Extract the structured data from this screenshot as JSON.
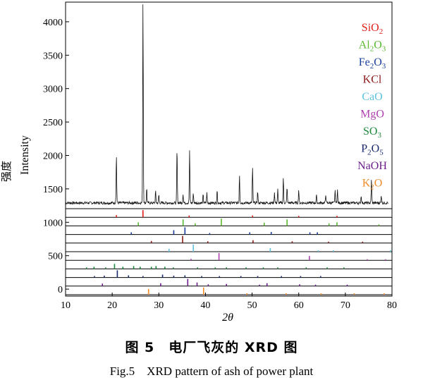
{
  "caption": {
    "chinese": "图 5　电厂飞灰的 XRD 图",
    "english": "Fig.5　XRD pattern of ash of power plant"
  },
  "chart_data": {
    "type": "line",
    "xlabel": "2θ",
    "ylabel_cn": "强度",
    "ylabel_en": "Intensity",
    "xlim": [
      10,
      80
    ],
    "ylim": [
      0,
      4300
    ],
    "x_ticks": [
      10,
      20,
      30,
      40,
      50,
      60,
      70,
      80
    ],
    "y_ticks": [
      0,
      500,
      1000,
      1500,
      2000,
      2500,
      3000,
      3500,
      4000
    ],
    "series": [
      {
        "name": "",
        "baseline": 1280,
        "peaks": [
          {
            "x": 20.9,
            "y": 2000
          },
          {
            "x": 26.6,
            "y": 4300
          },
          {
            "x": 27.4,
            "y": 1500
          },
          {
            "x": 29.3,
            "y": 1450
          },
          {
            "x": 30.0,
            "y": 1400
          },
          {
            "x": 33.9,
            "y": 2100
          },
          {
            "x": 35.2,
            "y": 1420
          },
          {
            "x": 36.6,
            "y": 2050
          },
          {
            "x": 37.4,
            "y": 1420
          },
          {
            "x": 39.5,
            "y": 1400
          },
          {
            "x": 40.3,
            "y": 1430
          },
          {
            "x": 42.5,
            "y": 1470
          },
          {
            "x": 47.3,
            "y": 1700
          },
          {
            "x": 50.1,
            "y": 1800
          },
          {
            "x": 51.2,
            "y": 1450
          },
          {
            "x": 54.8,
            "y": 1440
          },
          {
            "x": 55.5,
            "y": 1480
          },
          {
            "x": 56.7,
            "y": 1660
          },
          {
            "x": 57.5,
            "y": 1520
          },
          {
            "x": 60.0,
            "y": 1480
          },
          {
            "x": 63.8,
            "y": 1400
          },
          {
            "x": 65.8,
            "y": 1410
          },
          {
            "x": 67.8,
            "y": 1460
          },
          {
            "x": 68.3,
            "y": 1480
          },
          {
            "x": 73.4,
            "y": 1390
          },
          {
            "x": 75.6,
            "y": 1640
          },
          {
            "x": 77.7,
            "y": 1400
          }
        ]
      }
    ],
    "reference_patterns": [
      {
        "name": "SiO2",
        "color": "#e0201c",
        "lines": [
          [
            20.9,
            0.3
          ],
          [
            26.6,
            1.0
          ],
          [
            36.5,
            0.25
          ],
          [
            50.1,
            0.25
          ],
          [
            60.0,
            0.2
          ],
          [
            68.2,
            0.2
          ]
        ]
      },
      {
        "name": "Al2O3",
        "color": "#5ab830",
        "lines": [
          [
            25.6,
            0.5
          ],
          [
            35.2,
            0.9
          ],
          [
            37.8,
            0.35
          ],
          [
            43.4,
            1.0
          ],
          [
            52.6,
            0.45
          ],
          [
            57.5,
            0.9
          ],
          [
            66.5,
            0.35
          ],
          [
            68.2,
            0.5
          ],
          [
            77.2,
            0.2
          ]
        ]
      },
      {
        "name": "Fe2O3",
        "color": "#1a3f9a",
        "lines": [
          [
            24.1,
            0.3
          ],
          [
            33.2,
            0.6
          ],
          [
            35.6,
            1.0
          ],
          [
            40.9,
            0.2
          ],
          [
            49.5,
            0.3
          ],
          [
            54.1,
            0.35
          ],
          [
            62.4,
            0.3
          ],
          [
            64.0,
            0.3
          ]
        ]
      },
      {
        "name": "KCl",
        "color": "#8b1a1a",
        "lines": [
          [
            28.4,
            0.3
          ],
          [
            35.1,
            1.0
          ],
          [
            40.5,
            0.25
          ],
          [
            50.2,
            0.4
          ],
          [
            58.6,
            0.25
          ],
          [
            66.4,
            0.2
          ],
          [
            73.7,
            0.2
          ]
        ]
      },
      {
        "name": "CaO",
        "color": "#5fc2dd",
        "lines": [
          [
            32.2,
            0.4
          ],
          [
            37.4,
            1.0
          ],
          [
            53.9,
            0.5
          ],
          [
            64.2,
            0.2
          ],
          [
            67.4,
            0.2
          ],
          [
            79.7,
            0.2
          ]
        ]
      },
      {
        "name": "MgO",
        "color": "#b040b0",
        "lines": [
          [
            36.9,
            0.2
          ],
          [
            42.9,
            1.0
          ],
          [
            62.3,
            0.6
          ],
          [
            74.7,
            0.15
          ],
          [
            78.6,
            0.15
          ]
        ]
      },
      {
        "name": "SO3",
        "color": "#1e8a3c",
        "lines": [
          [
            14.5,
            0.2
          ],
          [
            16.1,
            0.3
          ],
          [
            18.6,
            0.2
          ],
          [
            20.5,
            0.7
          ],
          [
            22.3,
            0.3
          ],
          [
            24.6,
            0.4
          ],
          [
            26.0,
            0.3
          ],
          [
            28.4,
            0.3
          ],
          [
            29.4,
            0.4
          ],
          [
            31.3,
            0.3
          ],
          [
            33.1,
            0.2
          ],
          [
            38.3,
            0.2
          ],
          [
            42.1,
            0.2
          ],
          [
            44.5,
            0.2
          ],
          [
            48.7,
            0.2
          ],
          [
            52.4,
            0.2
          ],
          [
            55.5,
            0.2
          ],
          [
            61.6,
            0.2
          ],
          [
            66.1,
            0.2
          ],
          [
            69.7,
            0.2
          ]
        ]
      },
      {
        "name": "P2O5",
        "color": "#1c2a6e",
        "lines": [
          [
            16.2,
            0.2
          ],
          [
            18.3,
            0.25
          ],
          [
            21.1,
            1.0
          ],
          [
            23.5,
            0.3
          ],
          [
            26.6,
            0.2
          ],
          [
            30.8,
            0.4
          ],
          [
            33.2,
            0.25
          ],
          [
            35.6,
            0.3
          ],
          [
            39.2,
            0.2
          ],
          [
            43.0,
            0.2
          ],
          [
            47.6,
            0.2
          ],
          [
            51.2,
            0.2
          ],
          [
            56.3,
            0.2
          ],
          [
            60.4,
            0.2
          ],
          [
            64.7,
            0.2
          ]
        ]
      },
      {
        "name": "NaOH",
        "color": "#6b1f8a",
        "lines": [
          [
            17.9,
            0.35
          ],
          [
            30.4,
            0.4
          ],
          [
            36.2,
            1.0
          ],
          [
            38.2,
            0.5
          ],
          [
            40.6,
            0.25
          ],
          [
            44.5,
            0.3
          ],
          [
            51.6,
            0.2
          ],
          [
            53.2,
            0.4
          ],
          [
            60.2,
            0.25
          ],
          [
            63.6,
            0.2
          ],
          [
            70.4,
            0.2
          ]
        ]
      },
      {
        "name": "K2O",
        "color": "#f08c25",
        "lines": [
          [
            27.8,
            0.8
          ],
          [
            39.6,
            1.0
          ],
          [
            48.9,
            0.2
          ],
          [
            57.3,
            0.2
          ],
          [
            64.8,
            0.2
          ],
          [
            71.9,
            0.2
          ],
          [
            78.3,
            0.2
          ]
        ]
      }
    ],
    "legend_placement": "right"
  }
}
